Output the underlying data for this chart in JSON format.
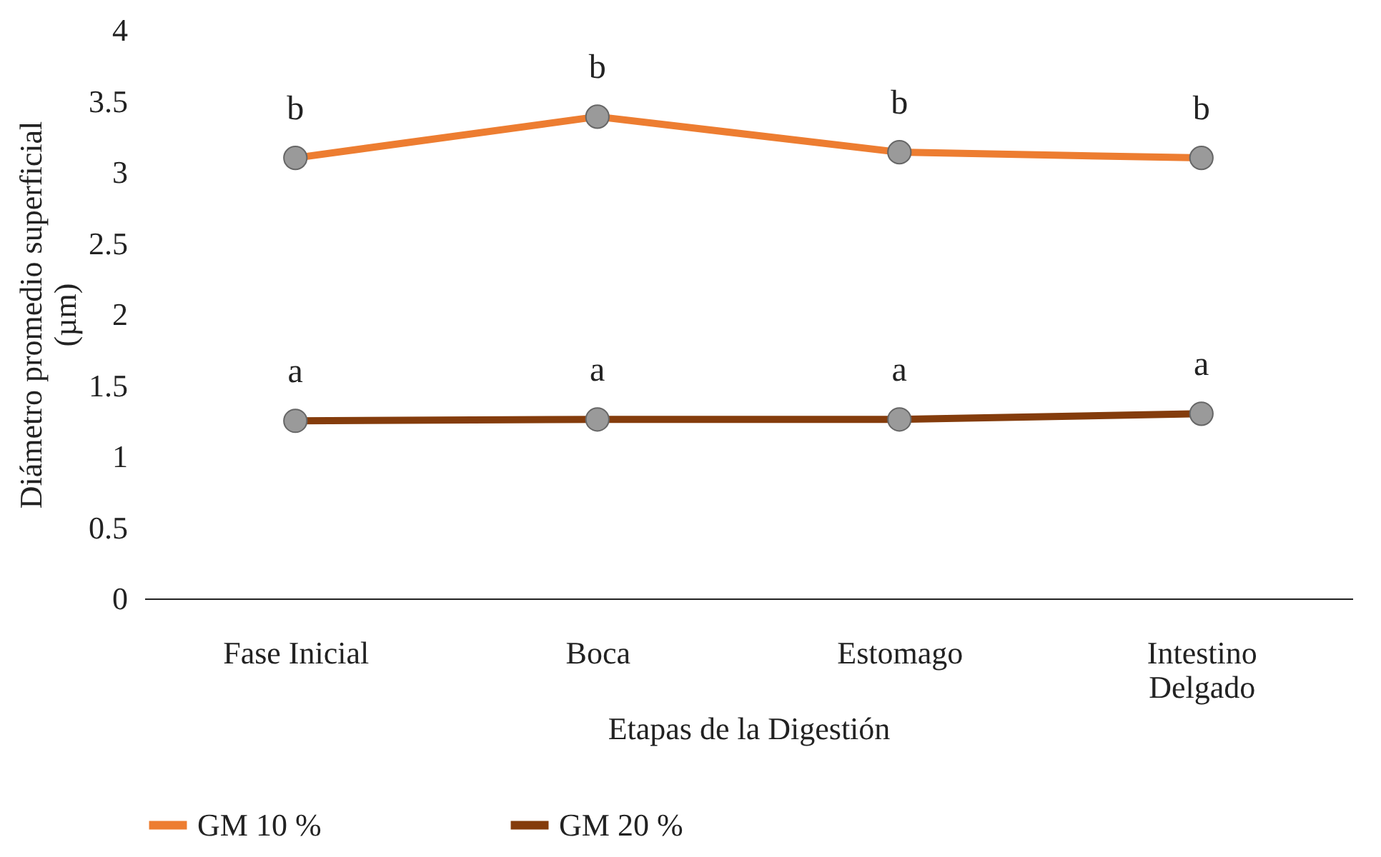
{
  "chart_data": {
    "type": "line",
    "xlabel": "Etapas de la Digestión",
    "ylabel": "Diámetro promedio superficial (µm)",
    "categories": [
      "Fase Inicial",
      "Boca",
      "Estomago",
      "Intestino Delgado"
    ],
    "series": [
      {
        "name": "GM 10 %",
        "color": "#ed7d31",
        "values": [
          3.1,
          3.39,
          3.14,
          3.1
        ]
      },
      {
        "name": "GM 20 %",
        "color": "#843c0c",
        "values": [
          1.25,
          1.26,
          1.26,
          1.3
        ]
      }
    ],
    "ylim": [
      0,
      4
    ],
    "yticks": [
      0,
      0.5,
      1,
      1.5,
      2,
      2.5,
      3,
      3.5,
      4
    ],
    "grid": false,
    "legend": "bottom",
    "marker": "circle",
    "line_style": "solid",
    "annotations": [
      {
        "text": "b",
        "x": "Fase Inicial",
        "y": 3.1
      },
      {
        "text": "b",
        "x": "Boca",
        "y": 3.39
      },
      {
        "text": "b",
        "x": "Estomago",
        "y": 3.14
      },
      {
        "text": "b",
        "x": "Intestino Delgado",
        "y": 3.1
      },
      {
        "text": "a",
        "x": "Fase Inicial",
        "y": 1.25
      },
      {
        "text": "a",
        "x": "Boca",
        "y": 1.26
      },
      {
        "text": "a",
        "x": "Estomago",
        "y": 1.26
      },
      {
        "text": "a",
        "x": "Intestino Delgado",
        "y": 1.3
      }
    ]
  }
}
